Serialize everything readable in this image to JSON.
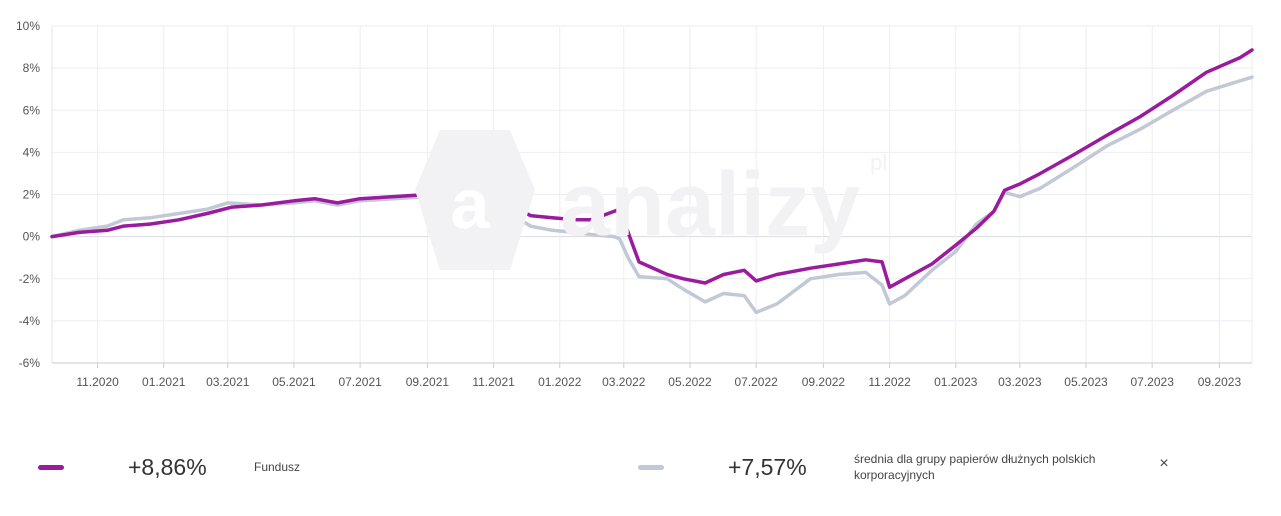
{
  "chart_data": {
    "type": "line",
    "ylim": [
      -6,
      10
    ],
    "y_ticks": [
      "10%",
      "8%",
      "6%",
      "4%",
      "2%",
      "0%",
      "-2%",
      "-4%",
      "-6%"
    ],
    "x_ticks": [
      "11.2020",
      "01.2021",
      "03.2021",
      "05.2021",
      "07.2021",
      "09.2021",
      "11.2021",
      "01.2022",
      "03.2022",
      "05.2022",
      "07.2022",
      "09.2022",
      "11.2022",
      "01.2023",
      "03.2023",
      "05.2023",
      "07.2023",
      "09.2023"
    ],
    "grid": true,
    "series": [
      {
        "name": "Fundusz",
        "color": "#9b1b9e",
        "points": [
          [
            "2020-09-20",
            0.0
          ],
          [
            "2020-10-15",
            0.2
          ],
          [
            "2020-11-10",
            0.3
          ],
          [
            "2020-11-25",
            0.5
          ],
          [
            "2020-12-20",
            0.6
          ],
          [
            "2021-01-15",
            0.8
          ],
          [
            "2021-02-10",
            1.1
          ],
          [
            "2021-03-05",
            1.4
          ],
          [
            "2021-04-01",
            1.5
          ],
          [
            "2021-05-01",
            1.7
          ],
          [
            "2021-05-20",
            1.8
          ],
          [
            "2021-06-10",
            1.6
          ],
          [
            "2021-07-01",
            1.8
          ],
          [
            "2021-08-01",
            1.9
          ],
          [
            "2021-09-01",
            2.0
          ],
          [
            "2021-09-25",
            2.2
          ],
          [
            "2021-10-15",
            2.1
          ],
          [
            "2021-10-30",
            1.7
          ],
          [
            "2021-11-20",
            1.4
          ],
          [
            "2021-12-05",
            1.0
          ],
          [
            "2021-12-25",
            0.9
          ],
          [
            "2022-01-15",
            0.8
          ],
          [
            "2022-01-30",
            0.8
          ],
          [
            "2022-02-20",
            1.2
          ],
          [
            "2022-02-25",
            1.3
          ],
          [
            "2022-03-05",
            0.2
          ],
          [
            "2022-03-15",
            -1.2
          ],
          [
            "2022-04-10",
            -1.8
          ],
          [
            "2022-04-25",
            -2.0
          ],
          [
            "2022-05-15",
            -2.2
          ],
          [
            "2022-06-01",
            -1.8
          ],
          [
            "2022-06-20",
            -1.6
          ],
          [
            "2022-07-01",
            -2.1
          ],
          [
            "2022-07-20",
            -1.8
          ],
          [
            "2022-08-20",
            -1.5
          ],
          [
            "2022-09-15",
            -1.3
          ],
          [
            "2022-10-10",
            -1.1
          ],
          [
            "2022-10-25",
            -1.2
          ],
          [
            "2022-11-01",
            -2.4
          ],
          [
            "2022-11-15",
            -2.0
          ],
          [
            "2022-12-10",
            -1.3
          ],
          [
            "2023-01-01",
            -0.4
          ],
          [
            "2023-01-20",
            0.4
          ],
          [
            "2023-02-05",
            1.2
          ],
          [
            "2023-02-15",
            2.2
          ],
          [
            "2023-03-01",
            2.5
          ],
          [
            "2023-03-20",
            3.0
          ],
          [
            "2023-04-20",
            3.9
          ],
          [
            "2023-05-20",
            4.8
          ],
          [
            "2023-06-20",
            5.7
          ],
          [
            "2023-07-20",
            6.7
          ],
          [
            "2023-08-20",
            7.8
          ],
          [
            "2023-09-20",
            8.5
          ],
          [
            "2023-10-01",
            8.86
          ]
        ]
      },
      {
        "name": "średnia dla grupy papierów dłużnych polskich korporacyjnych",
        "color": "#c3c8d6",
        "points": [
          [
            "2020-09-20",
            0.0
          ],
          [
            "2020-10-15",
            0.3
          ],
          [
            "2020-11-10",
            0.5
          ],
          [
            "2020-11-25",
            0.8
          ],
          [
            "2020-12-20",
            0.9
          ],
          [
            "2021-01-15",
            1.1
          ],
          [
            "2021-02-10",
            1.3
          ],
          [
            "2021-03-01",
            1.6
          ],
          [
            "2021-04-01",
            1.5
          ],
          [
            "2021-05-01",
            1.6
          ],
          [
            "2021-05-20",
            1.7
          ],
          [
            "2021-06-10",
            1.5
          ],
          [
            "2021-07-01",
            1.7
          ],
          [
            "2021-08-01",
            1.8
          ],
          [
            "2021-09-01",
            1.9
          ],
          [
            "2021-09-25",
            2.0
          ],
          [
            "2021-10-15",
            1.9
          ],
          [
            "2021-10-30",
            1.4
          ],
          [
            "2021-11-20",
            1.0
          ],
          [
            "2021-12-05",
            0.5
          ],
          [
            "2021-12-25",
            0.3
          ],
          [
            "2022-01-15",
            0.2
          ],
          [
            "2022-01-30",
            0.1
          ],
          [
            "2022-02-20",
            0.0
          ],
          [
            "2022-02-25",
            -0.1
          ],
          [
            "2022-03-05",
            -1.0
          ],
          [
            "2022-03-15",
            -1.9
          ],
          [
            "2022-04-10",
            -2.0
          ],
          [
            "2022-04-25",
            -2.5
          ],
          [
            "2022-05-15",
            -3.1
          ],
          [
            "2022-06-01",
            -2.7
          ],
          [
            "2022-06-20",
            -2.8
          ],
          [
            "2022-07-01",
            -3.6
          ],
          [
            "2022-07-20",
            -3.2
          ],
          [
            "2022-08-20",
            -2.0
          ],
          [
            "2022-09-15",
            -1.8
          ],
          [
            "2022-10-10",
            -1.7
          ],
          [
            "2022-10-25",
            -2.3
          ],
          [
            "2022-11-01",
            -3.2
          ],
          [
            "2022-11-15",
            -2.8
          ],
          [
            "2022-12-10",
            -1.6
          ],
          [
            "2023-01-01",
            -0.7
          ],
          [
            "2023-01-20",
            0.6
          ],
          [
            "2023-02-05",
            1.2
          ],
          [
            "2023-02-15",
            2.1
          ],
          [
            "2023-03-01",
            1.9
          ],
          [
            "2023-03-20",
            2.3
          ],
          [
            "2023-04-20",
            3.3
          ],
          [
            "2023-05-20",
            4.3
          ],
          [
            "2023-06-20",
            5.1
          ],
          [
            "2023-07-20",
            6.0
          ],
          [
            "2023-08-20",
            6.9
          ],
          [
            "2023-09-20",
            7.4
          ],
          [
            "2023-10-01",
            7.57
          ]
        ]
      }
    ]
  },
  "watermark": {
    "text": "analizy",
    "suffix": "pl"
  },
  "legend": [
    {
      "value": "+8,86%",
      "label": "Fundusz",
      "color": "#9b1b9e"
    },
    {
      "value": "+7,57%",
      "label": "średnia dla grupy papierów dłużnych polskich korporacyjnych",
      "color": "#c3c8d6"
    }
  ],
  "close_label": "×"
}
